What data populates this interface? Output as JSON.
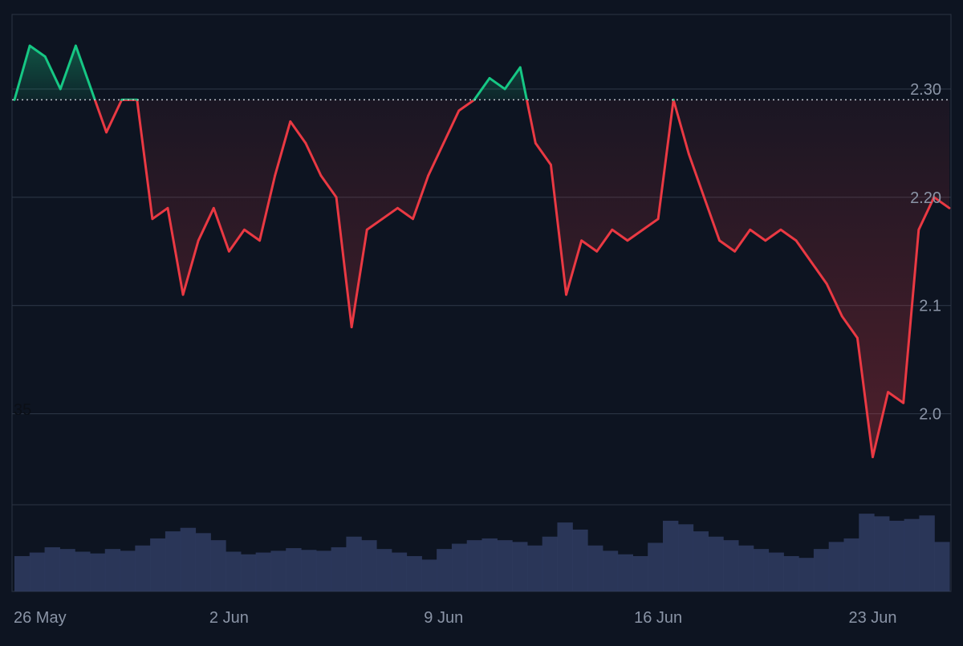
{
  "chart_data": {
    "type": "line",
    "subtype": "baseline-area-with-volume",
    "baseline_value": 2.29,
    "colors": {
      "background": "#0d1421",
      "above": "#16c784",
      "below": "#ea3943",
      "grid": "#2b3444",
      "axis_text": "#8a94a6",
      "baseline_dots": "#c0c4cc",
      "volume": "#2e3a5e"
    },
    "x_ticks": [
      "26 May",
      "2 Jun",
      "9 Jun",
      "16 Jun",
      "23 Jun"
    ],
    "y_ticks": [
      {
        "value": 2.0,
        "label": "2.0"
      },
      {
        "value": 2.1,
        "label": "2.1"
      },
      {
        "value": 2.2,
        "label": "2.20"
      },
      {
        "value": 2.3,
        "label": "2.30"
      }
    ],
    "stray_label": "35",
    "ylim": [
      1.93,
      2.36
    ],
    "title": "",
    "xlabel": "",
    "ylabel": "",
    "grid": true,
    "series": [
      {
        "x": [
          "2025-05-26",
          "2025-05-26T12:00",
          "2025-05-27",
          "2025-05-27T12:00",
          "2025-05-28",
          "2025-05-28T12:00",
          "2025-05-29",
          "2025-05-29T12:00",
          "2025-05-30",
          "2025-05-30T12:00",
          "2025-05-31",
          "2025-05-31T12:00",
          "2025-06-01",
          "2025-06-01T12:00",
          "2025-06-02",
          "2025-06-02T12:00",
          "2025-06-03",
          "2025-06-03T12:00",
          "2025-06-04",
          "2025-06-04T12:00",
          "2025-06-05",
          "2025-06-05T12:00",
          "2025-06-06",
          "2025-06-06T12:00",
          "2025-06-07",
          "2025-06-07T12:00",
          "2025-06-08",
          "2025-06-08T12:00",
          "2025-06-09",
          "2025-06-09T12:00",
          "2025-06-10",
          "2025-06-10T12:00",
          "2025-06-11",
          "2025-06-11T12:00",
          "2025-06-12",
          "2025-06-12T12:00",
          "2025-06-13",
          "2025-06-13T12:00",
          "2025-06-14",
          "2025-06-14T12:00",
          "2025-06-15",
          "2025-06-15T12:00",
          "2025-06-16",
          "2025-06-16T12:00",
          "2025-06-17",
          "2025-06-17T12:00",
          "2025-06-18",
          "2025-06-18T12:00",
          "2025-06-19",
          "2025-06-19T12:00",
          "2025-06-20",
          "2025-06-20T12:00",
          "2025-06-21",
          "2025-06-21T12:00",
          "2025-06-22",
          "2025-06-22T12:00",
          "2025-06-23",
          "2025-06-23T12:00",
          "2025-06-24",
          "2025-06-24T12:00",
          "2025-06-25",
          "2025-06-25T12:00"
        ],
        "values": [
          2.29,
          2.34,
          2.33,
          2.3,
          2.34,
          2.3,
          2.26,
          2.29,
          2.29,
          2.18,
          2.19,
          2.11,
          2.16,
          2.19,
          2.15,
          2.17,
          2.16,
          2.22,
          2.27,
          2.25,
          2.22,
          2.2,
          2.08,
          2.17,
          2.18,
          2.19,
          2.18,
          2.22,
          2.25,
          2.28,
          2.29,
          2.31,
          2.3,
          2.32,
          2.25,
          2.23,
          2.11,
          2.16,
          2.15,
          2.17,
          2.16,
          2.17,
          2.18,
          2.29,
          2.24,
          2.2,
          2.16,
          2.15,
          2.17,
          2.16,
          2.17,
          2.16,
          2.14,
          2.12,
          2.09,
          2.07,
          1.96,
          2.02,
          2.01,
          2.17,
          2.2,
          2.19
        ]
      }
    ],
    "volume": [
      40,
      44,
      50,
      48,
      45,
      43,
      48,
      46,
      52,
      60,
      68,
      72,
      66,
      58,
      45,
      42,
      44,
      46,
      49,
      47,
      46,
      50,
      62,
      58,
      48,
      44,
      40,
      36,
      48,
      54,
      58,
      60,
      58,
      56,
      52,
      62,
      78,
      70,
      52,
      46,
      42,
      40,
      55,
      80,
      76,
      68,
      62,
      58,
      52,
      48,
      44,
      40,
      38,
      48,
      56,
      60,
      88,
      85,
      80,
      82,
      86,
      56
    ]
  }
}
